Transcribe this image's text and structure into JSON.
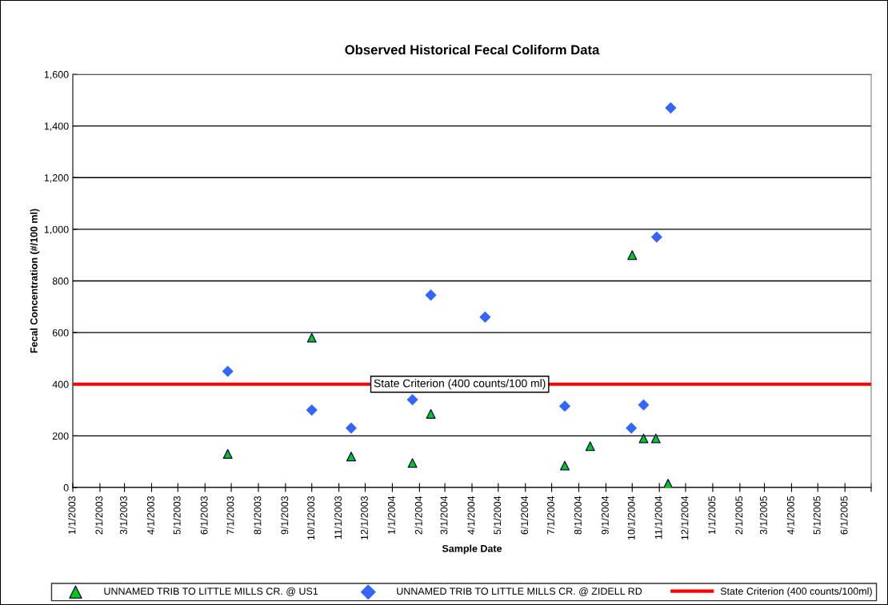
{
  "chart_data": {
    "type": "scatter",
    "title": "Observed Historical Fecal Coliform Data",
    "xlabel": "Sample Date",
    "ylabel": "Fecal Concentration (#/100 ml)",
    "series": [
      {
        "name": "UNNAMED TRIB TO LITTLE MILLS CR. @ US1",
        "marker": "triangle",
        "color": "#00cc00",
        "x": [
          "2003-06-27",
          "2003-10-01",
          "2003-11-15",
          "2004-01-24",
          "2004-02-14",
          "2004-07-16",
          "2004-08-14",
          "2004-10-01",
          "2004-10-14",
          "2004-10-28",
          "2004-11-11"
        ],
        "values": [
          130,
          580,
          120,
          95,
          285,
          85,
          160,
          900,
          190,
          190,
          15
        ]
      },
      {
        "name": "UNNAMED TRIB TO LITTLE MILLS CR. @ ZIDELL RD",
        "marker": "diamond",
        "color": "#3366ff",
        "x": [
          "2003-06-27",
          "2003-10-01",
          "2003-11-15",
          "2004-01-24",
          "2004-02-14",
          "2004-04-16",
          "2004-07-16",
          "2004-09-30",
          "2004-10-14",
          "2004-10-29",
          "2004-11-14"
        ],
        "values": [
          450,
          300,
          230,
          340,
          745,
          660,
          315,
          230,
          320,
          970,
          1470
        ]
      },
      {
        "name": "State Criterion (400 counts/100ml)",
        "type": "line",
        "marker": "none",
        "color": "#ff0000",
        "x": [
          "2003-01-01",
          "2005-07-01"
        ],
        "values": [
          400,
          400
        ]
      }
    ],
    "annotations": [
      {
        "text": "State Criterion (400 counts/100 ml)",
        "x": "2004-03-18",
        "y": 400
      }
    ],
    "xlim": [
      "2003-01-01",
      "2005-07-01"
    ],
    "xticks": [
      {
        "value": "2003-01-01",
        "label": "1/1/2003"
      },
      {
        "value": "2003-02-01",
        "label": "2/1/2003"
      },
      {
        "value": "2003-03-01",
        "label": "3/1/2003"
      },
      {
        "value": "2003-04-01",
        "label": "4/1/2003"
      },
      {
        "value": "2003-05-01",
        "label": "5/1/2003"
      },
      {
        "value": "2003-06-01",
        "label": "6/1/2003"
      },
      {
        "value": "2003-07-01",
        "label": "7/1/2003"
      },
      {
        "value": "2003-08-01",
        "label": "8/1/2003"
      },
      {
        "value": "2003-09-01",
        "label": "9/1/2003"
      },
      {
        "value": "2003-10-01",
        "label": "10/1/2003"
      },
      {
        "value": "2003-11-01",
        "label": "11/1/2003"
      },
      {
        "value": "2003-12-01",
        "label": "12/1/2003"
      },
      {
        "value": "2004-01-01",
        "label": "1/1/2004"
      },
      {
        "value": "2004-02-01",
        "label": "2/1/2004"
      },
      {
        "value": "2004-03-01",
        "label": "3/1/2004"
      },
      {
        "value": "2004-04-01",
        "label": "4/1/2004"
      },
      {
        "value": "2004-05-01",
        "label": "5/1/2004"
      },
      {
        "value": "2004-06-01",
        "label": "6/1/2004"
      },
      {
        "value": "2004-07-01",
        "label": "7/1/2004"
      },
      {
        "value": "2004-08-01",
        "label": "8/1/2004"
      },
      {
        "value": "2004-09-01",
        "label": "9/1/2004"
      },
      {
        "value": "2004-10-01",
        "label": "10/1/2004"
      },
      {
        "value": "2004-11-01",
        "label": "11/1/2004"
      },
      {
        "value": "2004-12-01",
        "label": "12/1/2004"
      },
      {
        "value": "2005-01-01",
        "label": "1/1/2005"
      },
      {
        "value": "2005-02-01",
        "label": "2/1/2005"
      },
      {
        "value": "2005-03-01",
        "label": "3/1/2005"
      },
      {
        "value": "2005-04-01",
        "label": "4/1/2005"
      },
      {
        "value": "2005-05-01",
        "label": "5/1/2005"
      },
      {
        "value": "2005-06-01",
        "label": "6/1/2005"
      },
      {
        "value": "2005-07-01",
        "label": null
      }
    ],
    "ylim": [
      0,
      1600
    ],
    "yticks": [
      {
        "value": 0,
        "label": "0"
      },
      {
        "value": 200,
        "label": "200"
      },
      {
        "value": 400,
        "label": "400"
      },
      {
        "value": 600,
        "label": "600"
      },
      {
        "value": 800,
        "label": "800"
      },
      {
        "value": 1000,
        "label": "1,000"
      },
      {
        "value": 1200,
        "label": "1,200"
      },
      {
        "value": 1400,
        "label": "1,400"
      },
      {
        "value": 1600,
        "label": "1,600"
      }
    ],
    "grid": "y",
    "legend": "bottom"
  }
}
